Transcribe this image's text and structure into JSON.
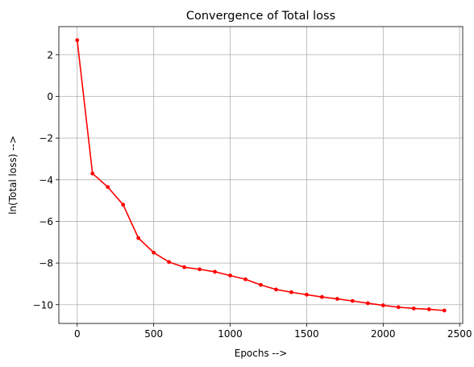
{
  "chart_data": {
    "type": "line",
    "title": "Convergence of Total loss",
    "xlabel": "Epochs -->",
    "ylabel": "ln(Total loss) -->",
    "xlim": [
      -120,
      2520
    ],
    "ylim": [
      -10.9,
      3.35
    ],
    "xticks": [
      0,
      500,
      1000,
      1500,
      2000,
      2500
    ],
    "xtick_labels": [
      "0",
      "500",
      "1000",
      "1500",
      "2000",
      "2500"
    ],
    "yticks": [
      2,
      0,
      -2,
      -4,
      -6,
      -8,
      -10
    ],
    "ytick_labels": [
      "2",
      "0",
      "−2",
      "−4",
      "−6",
      "−8",
      "−10"
    ],
    "grid": true,
    "series": [
      {
        "color": "#ff0000",
        "marker": "dot",
        "x": [
          0,
          100,
          200,
          300,
          400,
          500,
          600,
          700,
          800,
          900,
          1000,
          1100,
          1200,
          1300,
          1400,
          1500,
          1600,
          1700,
          1800,
          1900,
          2000,
          2100,
          2200,
          2300,
          2400
        ],
        "values": [
          2.7,
          -3.7,
          -4.35,
          -5.2,
          -6.8,
          -7.5,
          -7.95,
          -8.2,
          -8.3,
          -8.42,
          -8.6,
          -8.78,
          -9.05,
          -9.27,
          -9.4,
          -9.52,
          -9.63,
          -9.72,
          -9.82,
          -9.93,
          -10.03,
          -10.12,
          -10.18,
          -10.22,
          -10.28
        ]
      }
    ]
  }
}
